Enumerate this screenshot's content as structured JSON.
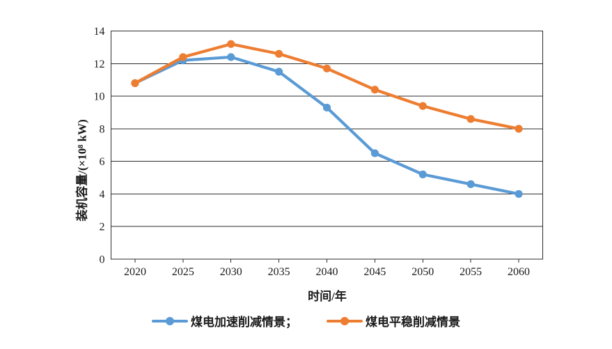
{
  "chart_data": {
    "type": "line",
    "title": "",
    "xlabel": "时间/年",
    "ylabel": "装机容量/(×10⁸ kW)",
    "categories": [
      "2020",
      "2025",
      "2030",
      "2035",
      "2040",
      "2045",
      "2050",
      "2055",
      "2060"
    ],
    "series": [
      {
        "name": "煤电加速削减情景",
        "color": "#5B9BD5",
        "values": [
          10.8,
          12.2,
          12.4,
          11.5,
          9.3,
          6.5,
          5.2,
          4.6,
          4.0
        ]
      },
      {
        "name": "煤电平稳削减情景",
        "color": "#ED7D31",
        "values": [
          10.8,
          12.4,
          13.2,
          12.6,
          11.7,
          10.4,
          9.4,
          8.6,
          8.0
        ]
      }
    ],
    "ylim": [
      0,
      14
    ],
    "ytick_step": 2,
    "grid": "horizontal",
    "legend_position": "bottom",
    "marker": "circle",
    "axis_color": "#2b2b2b"
  },
  "axes": {
    "x_title": "时间/年",
    "y_title": "装机容量/(×10⁸ kW)"
  },
  "legend": {
    "items": [
      {
        "label": "煤电加速削减情景；"
      },
      {
        "label": "煤电平稳削减情景"
      }
    ]
  }
}
